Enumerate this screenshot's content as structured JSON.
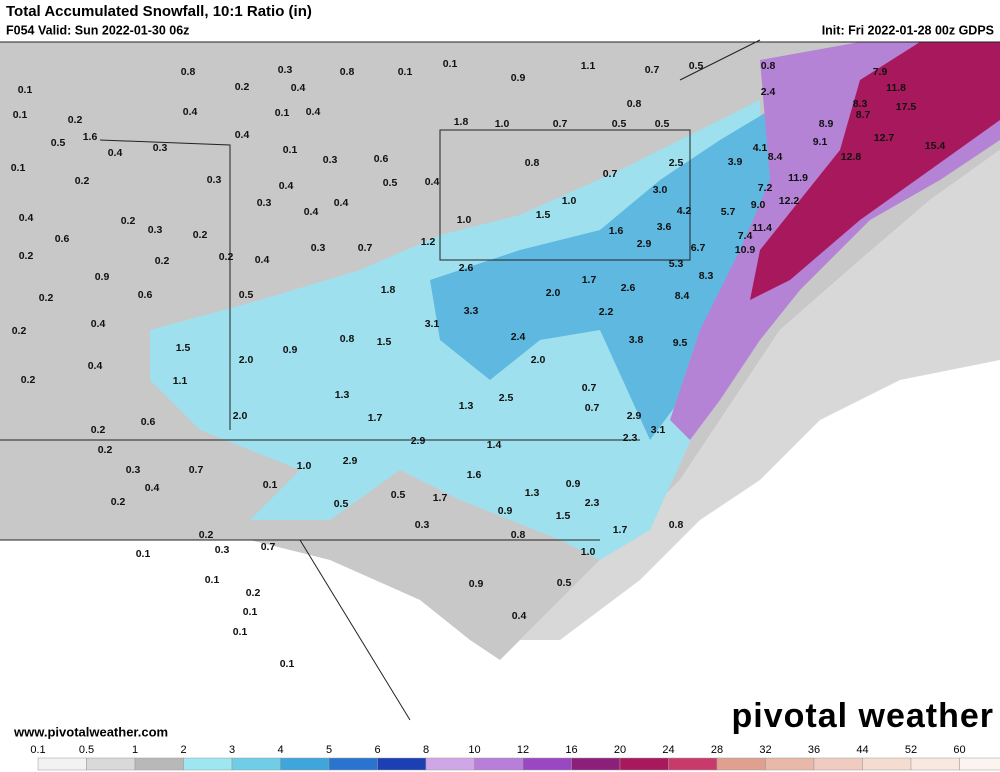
{
  "header": {
    "title": "Total Accumulated Snowfall, 10:1 Ratio (in)",
    "valid": "F054 Valid: Sun 2022-01-30 06z",
    "init": "Init: Fri 2022-01-28 00z GDPS"
  },
  "footer": {
    "website": "www.pivotalweather.com",
    "logo": "pivotal weather"
  },
  "legend": [
    {
      "label": "0.1",
      "color": "#f2f2f2"
    },
    {
      "label": "0.5",
      "color": "#d9d9d9"
    },
    {
      "label": "1",
      "color": "#b8b8b8"
    },
    {
      "label": "2",
      "color": "#9ee6f0"
    },
    {
      "label": "3",
      "color": "#6fcde6"
    },
    {
      "label": "4",
      "color": "#3fa6db"
    },
    {
      "label": "5",
      "color": "#2a74cf"
    },
    {
      "label": "6",
      "color": "#1c3fb4"
    },
    {
      "label": "8",
      "color": "#cfa6e6"
    },
    {
      "label": "10",
      "color": "#b77fd9"
    },
    {
      "label": "12",
      "color": "#9a48c2"
    },
    {
      "label": "16",
      "color": "#8c1f7a"
    },
    {
      "label": "20",
      "color": "#a8185c"
    },
    {
      "label": "24",
      "color": "#c83a6a"
    },
    {
      "label": "28",
      "color": "#e0a090"
    },
    {
      "label": "32",
      "color": "#e8b8a8"
    },
    {
      "label": "36",
      "color": "#f0ccc0"
    },
    {
      "label": "44",
      "color": "#f5dcd0"
    },
    {
      "label": "52",
      "color": "#f8e8e0"
    },
    {
      "label": "60",
      "color": "#fcf4f0"
    }
  ],
  "snowfall_labels": [
    "0.1",
    "0.1",
    "0.2",
    "1.6",
    "0.5",
    "0.4",
    "0.3",
    "0.8",
    "0.2",
    "0.3",
    "0.4",
    "0.4",
    "0.1",
    "0.4",
    "0.4",
    "0.8",
    "0.1",
    "0.1",
    "0.9",
    "1.1",
    "0.7",
    "0.5",
    "0.8",
    "7.9",
    "11.8",
    "2.4",
    "0.8",
    "1.8",
    "1.0",
    "0.7",
    "0.5",
    "0.5",
    "8.3",
    "17.5",
    "8.7",
    "8.9",
    "0.1",
    "0.2",
    "0.3",
    "0.1",
    "0.3",
    "0.6",
    "0.5",
    "0.4",
    "0.4",
    "0.3",
    "0.4",
    "0.4",
    "0.8",
    "0.7",
    "2.5",
    "3.9",
    "4.1",
    "9.1",
    "12.7",
    "8.4",
    "12.8",
    "15.4",
    "7.2",
    "11.9",
    "3.0",
    "1.0",
    "4.2",
    "5.7",
    "9.0",
    "12.2",
    "0.4",
    "0.6",
    "0.2",
    "0.3",
    "0.2",
    "1.0",
    "1.5",
    "1.6",
    "3.6",
    "7.4",
    "11.4",
    "0.2",
    "0.9",
    "0.2",
    "0.2",
    "0.4",
    "0.3",
    "0.7",
    "1.2",
    "2.9",
    "6.7",
    "10.9",
    "2.6",
    "5.3",
    "8.3",
    "0.2",
    "0.6",
    "0.5",
    "1.8",
    "2.0",
    "1.7",
    "2.6",
    "8.4",
    "0.2",
    "0.4",
    "1.5",
    "2.0",
    "0.9",
    "0.8",
    "1.5",
    "3.1",
    "3.3",
    "2.4",
    "2.2",
    "3.8",
    "9.5",
    "2.0",
    "0.4",
    "1.1",
    "0.2",
    "1.3",
    "0.7",
    "0.7",
    "2.5",
    "1.3",
    "2.0",
    "0.6",
    "0.2",
    "1.7",
    "2.9",
    "3.1",
    "0.2",
    "2.9",
    "1.4",
    "2.3",
    "1.0",
    "2.9",
    "1.6",
    "0.3",
    "0.7",
    "0.1",
    "0.4",
    "0.2",
    "0.5",
    "1.7",
    "1.3",
    "0.9",
    "0.5",
    "0.9",
    "1.5",
    "2.3",
    "1.7",
    "0.8",
    "0.3",
    "0.8",
    "0.2",
    "0.3",
    "0.7",
    "0.1",
    "1.0",
    "0.1",
    "0.9",
    "0.5",
    "0.2",
    "0.1",
    "0.4",
    "0.1",
    "0.1"
  ]
}
